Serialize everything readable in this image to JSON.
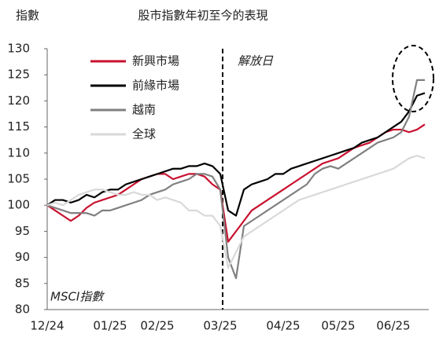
{
  "chart_data": {
    "type": "line",
    "title": "股市指數年初至今的表現",
    "y_label": "指數",
    "annotations": [
      "解放日",
      "MSCI指數"
    ],
    "categories": [
      "12/24",
      null,
      null,
      null,
      null,
      null,
      null,
      null,
      "01/25",
      null,
      null,
      null,
      null,
      null,
      "02/25",
      null,
      null,
      null,
      null,
      null,
      null,
      null,
      "03/25",
      null,
      null,
      null,
      null,
      null,
      null,
      null,
      "04/25",
      null,
      null,
      null,
      null,
      null,
      null,
      "05/25",
      null,
      null,
      null,
      null,
      null,
      null,
      "06/25",
      null,
      null,
      null,
      null
    ],
    "series": [
      {
        "name": "新興市場",
        "color": "#c8102e",
        "values": [
          100,
          99,
          98,
          97,
          98,
          99.5,
          100.5,
          101,
          101.5,
          102,
          103,
          104,
          105,
          105.5,
          106,
          106,
          105,
          105.5,
          106,
          106,
          105.5,
          104,
          103,
          93,
          95,
          97,
          99,
          100,
          101,
          102,
          103,
          104,
          105,
          106,
          107,
          108,
          108.5,
          109,
          110,
          111,
          111.5,
          112,
          113,
          114,
          114.5,
          114.5,
          114,
          114.5,
          115.5
        ]
      },
      {
        "name": "前緣市場",
        "color": "#000000",
        "values": [
          100,
          101,
          101,
          100.5,
          101,
          102,
          101.5,
          102.5,
          103,
          103,
          104,
          104.5,
          105,
          105.5,
          106,
          106.5,
          107,
          107,
          107.5,
          107.5,
          108,
          107.5,
          106,
          99,
          98,
          103,
          104,
          104.5,
          105,
          106,
          106,
          107,
          107.5,
          108,
          108.5,
          109,
          109.5,
          110,
          110.5,
          111,
          112,
          112.5,
          113,
          114,
          115,
          116,
          118,
          121,
          121.5
        ]
      },
      {
        "name": "越南",
        "color": "#808080",
        "values": [
          100,
          99.5,
          99,
          98.5,
          98.5,
          98.5,
          98,
          99,
          99,
          99.5,
          100,
          100.5,
          101,
          102,
          102.5,
          103,
          104,
          104.5,
          105,
          106,
          106,
          105.5,
          103,
          90,
          86,
          96,
          97,
          98,
          99,
          100,
          101,
          102,
          103,
          104,
          106,
          107,
          107.5,
          107,
          108,
          109,
          110,
          111,
          112,
          112.5,
          113,
          114,
          117,
          124,
          124
        ]
      },
      {
        "name": "全球",
        "color": "#d9d9d9",
        "values": [
          100,
          100.5,
          100,
          101,
          102,
          102.5,
          103,
          103,
          102.5,
          102,
          102,
          102.5,
          102,
          102,
          101,
          101.5,
          101,
          100.5,
          99,
          99,
          98,
          98,
          96,
          88,
          91,
          94,
          95,
          96,
          97,
          98,
          99,
          100,
          101,
          101.5,
          102,
          102.5,
          103,
          103.5,
          104,
          104.5,
          105,
          105.5,
          106,
          106.5,
          107,
          108,
          109,
          109.5,
          109
        ]
      }
    ],
    "ylim": [
      80,
      130
    ],
    "yticks": [
      80,
      85,
      90,
      95,
      100,
      105,
      110,
      115,
      120,
      125,
      130
    ]
  }
}
